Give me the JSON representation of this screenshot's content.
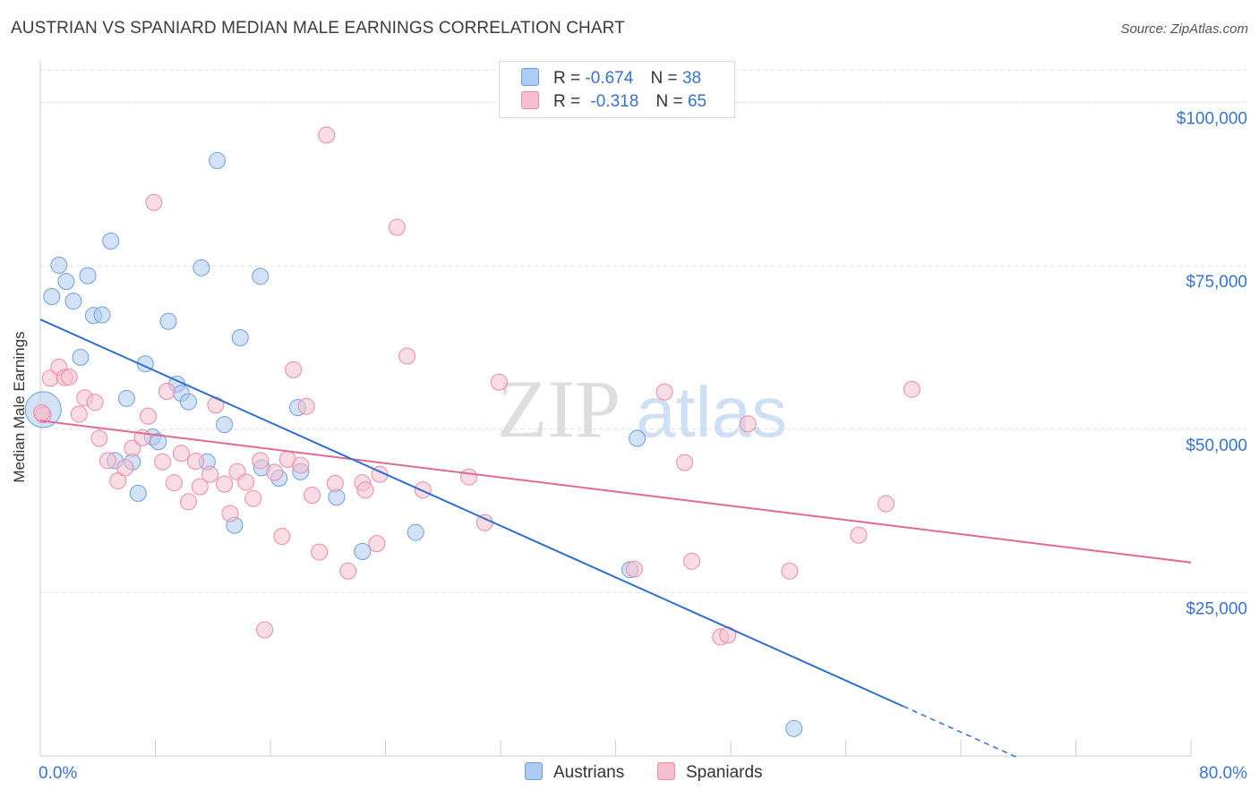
{
  "title": "AUSTRIAN VS SPANIARD MEDIAN MALE EARNINGS CORRELATION CHART",
  "source": "Source: ZipAtlas.com",
  "watermark": {
    "zip": "ZIP",
    "atlas": "atlas"
  },
  "legend": {
    "austrians": {
      "r_label": "R =",
      "r_value": "-0.674",
      "n_label": "N =",
      "n_value": "38"
    },
    "spaniards": {
      "r_label": "R =",
      "r_value": "-0.318",
      "n_label": "N =",
      "n_value": "65"
    }
  },
  "bottom_legend": {
    "austrians": "Austrians",
    "spaniards": "Spaniards"
  },
  "colors": {
    "austrians_fill": "#aecbf0",
    "austrians_stroke": "#6d9fdb",
    "austrians_line": "#2f6fcc",
    "spaniards_fill": "#f6bfd0",
    "spaniards_stroke": "#e98aa8",
    "spaniards_line": "#e06a92",
    "axis_label": "#3a74c9",
    "grid": "#dddddd"
  },
  "chart_data": {
    "type": "scatter",
    "title": "AUSTRIAN VS SPANIARD MEDIAN MALE EARNINGS CORRELATION CHART",
    "xlabel": "",
    "ylabel": "Median Male Earnings",
    "xlim": [
      0,
      80
    ],
    "ylim": [
      0,
      105000
    ],
    "x_tick_labels": [
      "0.0%",
      "80.0%"
    ],
    "y_ticks": [
      25000,
      50000,
      75000,
      100000
    ],
    "y_tick_labels": [
      "$25,000",
      "$50,000",
      "$75,000",
      "$100,000"
    ],
    "grid": "horizontal dashed",
    "series": [
      {
        "name": "Austrians",
        "points": [
          [
            0.2,
            53000
          ],
          [
            0.8,
            70300
          ],
          [
            1.3,
            75100
          ],
          [
            1.8,
            72600
          ],
          [
            2.3,
            69600
          ],
          [
            2.8,
            61000
          ],
          [
            3.3,
            73500
          ],
          [
            3.7,
            67400
          ],
          [
            4.3,
            67500
          ],
          [
            4.9,
            78800
          ],
          [
            5.2,
            45200
          ],
          [
            6.0,
            54700
          ],
          [
            6.4,
            45000
          ],
          [
            6.8,
            40200
          ],
          [
            7.3,
            60000
          ],
          [
            7.8,
            48800
          ],
          [
            8.2,
            48100
          ],
          [
            8.9,
            66500
          ],
          [
            9.5,
            56900
          ],
          [
            9.8,
            55500
          ],
          [
            10.3,
            54200
          ],
          [
            11.2,
            74700
          ],
          [
            11.6,
            45000
          ],
          [
            12.3,
            91100
          ],
          [
            12.8,
            50700
          ],
          [
            13.5,
            35300
          ],
          [
            13.9,
            64000
          ],
          [
            15.3,
            73400
          ],
          [
            15.4,
            44100
          ],
          [
            16.6,
            42500
          ],
          [
            17.9,
            53300
          ],
          [
            18.1,
            43500
          ],
          [
            20.6,
            39600
          ],
          [
            22.4,
            31300
          ],
          [
            26.1,
            34200
          ],
          [
            41.0,
            28500
          ],
          [
            41.5,
            48600
          ],
          [
            52.4,
            4200
          ]
        ]
      },
      {
        "name": "Spaniards",
        "points": [
          [
            0.2,
            52200
          ],
          [
            0.7,
            57800
          ],
          [
            1.3,
            59500
          ],
          [
            1.7,
            57900
          ],
          [
            2.0,
            58000
          ],
          [
            2.7,
            52300
          ],
          [
            3.1,
            54800
          ],
          [
            3.8,
            54100
          ],
          [
            4.1,
            48600
          ],
          [
            4.7,
            45200
          ],
          [
            5.4,
            42100
          ],
          [
            5.9,
            44100
          ],
          [
            6.4,
            47100
          ],
          [
            7.1,
            48700
          ],
          [
            7.5,
            52000
          ],
          [
            7.9,
            84700
          ],
          [
            8.5,
            45000
          ],
          [
            8.8,
            55800
          ],
          [
            9.3,
            41800
          ],
          [
            9.8,
            46300
          ],
          [
            10.3,
            38900
          ],
          [
            10.8,
            45100
          ],
          [
            11.1,
            41200
          ],
          [
            11.8,
            43100
          ],
          [
            12.2,
            53700
          ],
          [
            12.8,
            41600
          ],
          [
            13.2,
            37100
          ],
          [
            13.7,
            43500
          ],
          [
            14.3,
            41900
          ],
          [
            14.8,
            39400
          ],
          [
            15.3,
            45200
          ],
          [
            15.6,
            19300
          ],
          [
            16.3,
            43400
          ],
          [
            16.8,
            33600
          ],
          [
            17.2,
            45400
          ],
          [
            17.6,
            59100
          ],
          [
            18.1,
            44500
          ],
          [
            18.5,
            53500
          ],
          [
            18.9,
            39900
          ],
          [
            19.4,
            31200
          ],
          [
            19.9,
            95000
          ],
          [
            20.5,
            41700
          ],
          [
            21.4,
            28300
          ],
          [
            22.4,
            41800
          ],
          [
            22.6,
            40700
          ],
          [
            23.4,
            32500
          ],
          [
            23.6,
            43100
          ],
          [
            24.8,
            80900
          ],
          [
            25.5,
            61200
          ],
          [
            26.6,
            40700
          ],
          [
            29.8,
            42700
          ],
          [
            30.9,
            35700
          ],
          [
            31.9,
            57200
          ],
          [
            41.3,
            28600
          ],
          [
            43.4,
            55700
          ],
          [
            44.8,
            44900
          ],
          [
            45.3,
            29800
          ],
          [
            47.3,
            18200
          ],
          [
            47.8,
            18500
          ],
          [
            49.2,
            50800
          ],
          [
            52.1,
            28300
          ],
          [
            56.9,
            33800
          ],
          [
            58.8,
            38600
          ],
          [
            60.6,
            56100
          ],
          [
            0.1,
            52500
          ]
        ]
      }
    ],
    "trendlines": [
      {
        "name": "Austrians",
        "x": [
          0,
          60
        ],
        "y": [
          66800,
          7600
        ],
        "dashed_to": [
          68,
          -300
        ]
      },
      {
        "name": "Spaniards",
        "x": [
          0,
          80
        ],
        "y": [
          51300,
          29600
        ]
      }
    ]
  }
}
